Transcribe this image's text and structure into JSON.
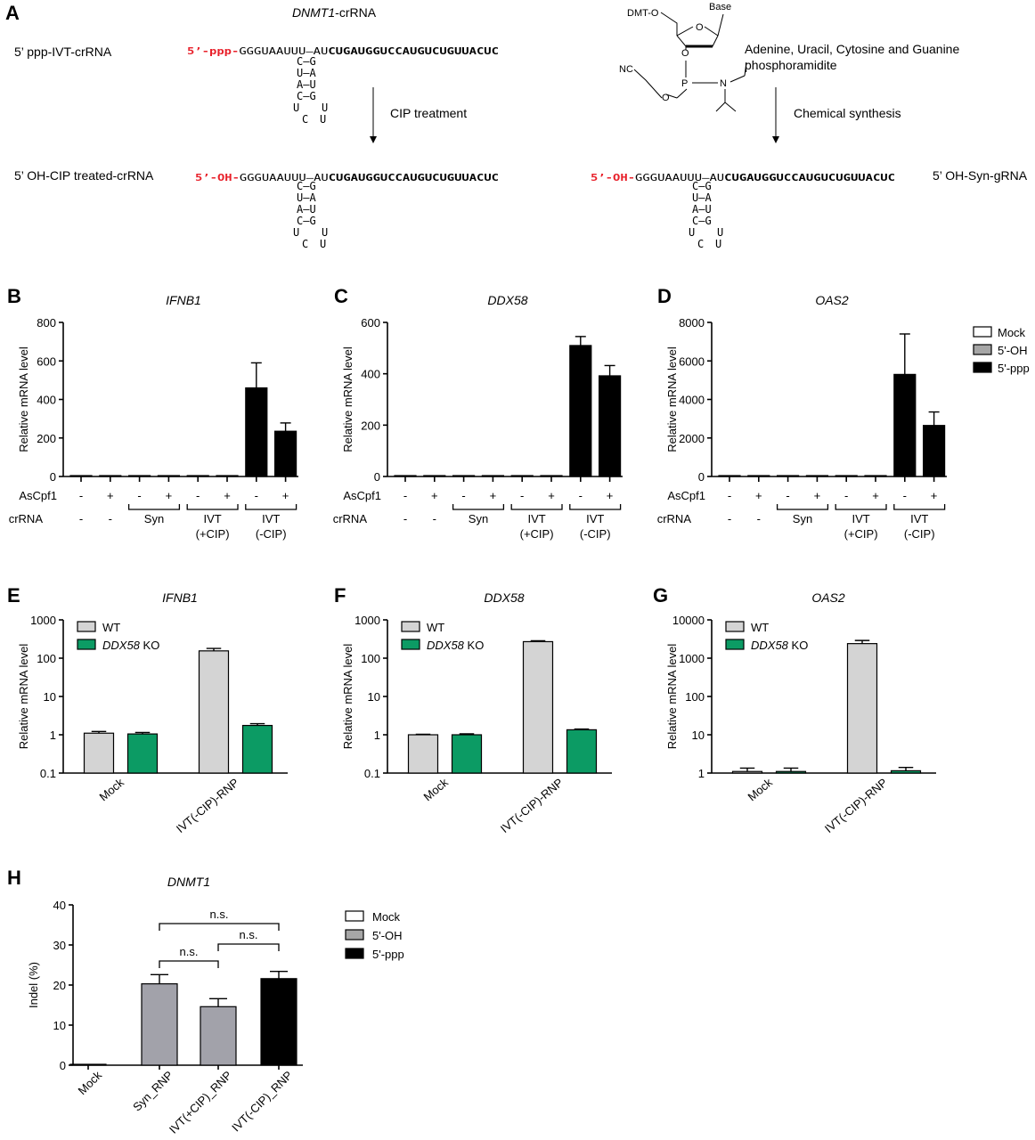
{
  "panelA": {
    "label": "A",
    "title_gene": "DNMT1",
    "title_suffix": "-crRNA",
    "row1_label": "5’ ppp-IVT-crRNA",
    "row2_label": "5’ OH-CIP treated-crRNA",
    "row3_label": "5’ OH-Syn-gRNA",
    "prefix_ppp": "5’-ppp-",
    "prefix_oh": "5’-OH-",
    "seq_plain": "GGGUAAUUU—AU",
    "seq_bold": "CUGAUGGUCCAUGUCUGUUACUC",
    "stem": [
      "C—G",
      "U—A",
      "A—U",
      "C—G"
    ],
    "loop_sides": [
      "U",
      "U"
    ],
    "loop_bottom": [
      "C",
      "U"
    ],
    "step1": "CIP treatment",
    "step2": "Chemical synthesis",
    "reagent_line1": "Adenine, Uracil, Cytosine and Guanine",
    "reagent_line2": "phosphoramidite",
    "chem": {
      "dmt": "DMT-O",
      "base": "Base",
      "o_ring": "O",
      "o_link": "O",
      "p": "P",
      "o2": "O",
      "nc": "NC",
      "n": "N"
    },
    "red": "#e8202a"
  },
  "legend_treat": [
    {
      "label": "Mock",
      "color": "#ffffff"
    },
    {
      "label": "5'-OH",
      "color": "#a6a6a6"
    },
    {
      "label": "5'-ppp",
      "color": "#000000"
    }
  ],
  "legend_geno": [
    {
      "label": "WT",
      "color": "#d4d4d4"
    },
    {
      "label": "DDX58",
      "suffix": " KO",
      "color": "#0c9b64"
    }
  ],
  "row_labels": {
    "ascpf1": "AsCpf1",
    "crrna": "crRNA"
  },
  "ascpf1_signs": [
    "-",
    "+",
    "-",
    "+",
    "-",
    "+",
    "-",
    "+"
  ],
  "crrna_groups": [
    {
      "label": "-"
    },
    {
      "label": "-"
    },
    {
      "label": "Syn"
    },
    {
      "label": "IVT",
      "sub": "(+CIP)"
    },
    {
      "label": "IVT",
      "sub": "(-CIP)"
    }
  ],
  "chart_data": [
    {
      "panel": "B",
      "type": "bar",
      "title": "IFNB1",
      "ylabel": "Relative mRNA level",
      "ylim": [
        0,
        800
      ],
      "yticks": [
        0,
        200,
        400,
        600,
        800
      ],
      "values": [
        1,
        1,
        1,
        1,
        2,
        3,
        460,
        235
      ],
      "errors": [
        0,
        0,
        0,
        0,
        0,
        0,
        130,
        43
      ],
      "colors": [
        "#ffffff",
        "#ffffff",
        "#a6a6a6",
        "#a6a6a6",
        "#a6a6a6",
        "#a6a6a6",
        "#000000",
        "#000000"
      ]
    },
    {
      "panel": "C",
      "type": "bar",
      "title": "DDX58",
      "ylabel": "Relative mRNA level",
      "ylim": [
        0,
        600
      ],
      "yticks": [
        0,
        200,
        400,
        600
      ],
      "values": [
        1,
        1,
        1,
        1,
        1,
        1,
        510,
        392
      ],
      "errors": [
        0,
        0,
        0,
        0,
        0,
        0,
        35,
        40
      ],
      "colors": [
        "#ffffff",
        "#ffffff",
        "#a6a6a6",
        "#a6a6a6",
        "#a6a6a6",
        "#a6a6a6",
        "#000000",
        "#000000"
      ]
    },
    {
      "panel": "D",
      "type": "bar",
      "title": "OAS2",
      "ylabel": "Relative mRNA level",
      "ylim": [
        0,
        8000
      ],
      "yticks": [
        0,
        2000,
        4000,
        6000,
        8000
      ],
      "values": [
        5,
        5,
        5,
        5,
        5,
        5,
        5300,
        2650
      ],
      "errors": [
        0,
        0,
        0,
        0,
        0,
        0,
        2100,
        700
      ],
      "colors": [
        "#ffffff",
        "#ffffff",
        "#a6a6a6",
        "#a6a6a6",
        "#a6a6a6",
        "#a6a6a6",
        "#000000",
        "#000000"
      ]
    },
    {
      "panel": "E",
      "type": "bar",
      "scale": "log",
      "title": "IFNB1",
      "ylabel": "Relative mRNA level",
      "ylim": [
        0.1,
        1000
      ],
      "yticks": [
        "0.1",
        "1",
        "10",
        "100",
        "1000"
      ],
      "categories": [
        "Mock",
        "IVT(-CIP)-RNP"
      ],
      "series": [
        {
          "name": "WT",
          "values": [
            1.1,
            155
          ],
          "errors": [
            0.12,
            25
          ]
        },
        {
          "name": "DDX58 KO",
          "values": [
            1.05,
            1.75
          ],
          "errors": [
            0.1,
            0.2
          ]
        }
      ]
    },
    {
      "panel": "F",
      "type": "bar",
      "scale": "log",
      "title": "DDX58",
      "ylabel": "Relative mRNA level",
      "ylim": [
        0.1,
        1000
      ],
      "yticks": [
        "0.1",
        "1",
        "10",
        "100",
        "1000"
      ],
      "categories": [
        "Mock",
        "IVT(-CIP)-RNP"
      ],
      "series": [
        {
          "name": "WT",
          "values": [
            1.0,
            270
          ],
          "errors": [
            0.03,
            15
          ]
        },
        {
          "name": "DDX58 KO",
          "values": [
            1.0,
            1.35
          ],
          "errors": [
            0.06,
            0.06
          ]
        }
      ]
    },
    {
      "panel": "G",
      "type": "bar",
      "scale": "log",
      "title": "OAS2",
      "ylabel": "Relative mRNA level",
      "ylim": [
        1,
        10000
      ],
      "yticks": [
        "1",
        "10",
        "100",
        "1000",
        "10000"
      ],
      "categories": [
        "Mock",
        "IVT(-CIP)-RNP"
      ],
      "series": [
        {
          "name": "WT",
          "values": [
            1.1,
            2400
          ],
          "errors": [
            0.25,
            500
          ]
        },
        {
          "name": "DDX58 KO",
          "values": [
            1.1,
            1.15
          ],
          "errors": [
            0.25,
            0.25
          ]
        }
      ]
    },
    {
      "panel": "H",
      "type": "bar",
      "title": "DNMT1",
      "ylabel": "Indel (%)",
      "ylim": [
        0,
        40
      ],
      "yticks": [
        0,
        10,
        20,
        30,
        40
      ],
      "categories": [
        "Mock",
        "Syn_RNP",
        "IVT(+CIP)_RNP",
        "IVT(-CIP)_RNP"
      ],
      "values": [
        0,
        20.3,
        14.6,
        21.6
      ],
      "errors": [
        0,
        2.3,
        2.0,
        1.8
      ],
      "colors": [
        "#ffffff",
        "#a2a2aa",
        "#a2a2aa",
        "#000000"
      ],
      "comparisons": [
        {
          "a": 1,
          "b": 2,
          "label": "n.s."
        },
        {
          "a": 2,
          "b": 3,
          "label": "n.s."
        },
        {
          "a": 1,
          "b": 3,
          "label": "n.s."
        }
      ]
    }
  ]
}
